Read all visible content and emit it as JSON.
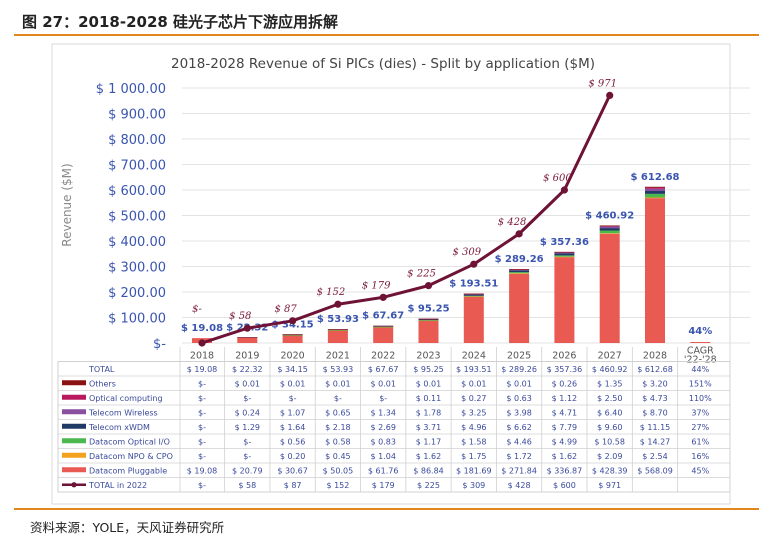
{
  "figure": {
    "caption": "图 27：2018-2028 硅光子芯片下游应用拆解",
    "source": "资料来源：YOLE，天风证券研究所"
  },
  "chart_data": {
    "type": "bar",
    "title": "2018-2028 Revenue of Si PICs (dies) - Split by application ($M)",
    "ylabel": "Revenue ($M)",
    "ylim": [
      0,
      1000
    ],
    "y_ticks": [
      "$-",
      "$ 100.00",
      "$ 200.00",
      "$ 300.00",
      "$ 400.00",
      "$ 500.00",
      "$ 600.00",
      "$ 700.00",
      "$ 800.00",
      "$ 900.00",
      "$ 1 000.00"
    ],
    "categories": [
      "2018",
      "2019",
      "2020",
      "2021",
      "2022",
      "2023",
      "2024",
      "2025",
      "2026",
      "2027",
      "2028"
    ],
    "cagr_header": "CAGR '22-'28",
    "cagr_column_label": "44%",
    "series": [
      {
        "name": "Datacom Pluggable",
        "color": "#e85a52",
        "values": [
          19.08,
          20.79,
          30.67,
          50.05,
          61.76,
          86.84,
          181.69,
          271.84,
          336.87,
          428.39,
          568.09
        ],
        "display": [
          "$ 19.08",
          "$ 20.79",
          "$ 30.67",
          "$ 50.05",
          "$ 61.76",
          "$ 86.84",
          "$ 181.69",
          "$ 271.84",
          "$ 336.87",
          "$ 428.39",
          "$ 568.09"
        ],
        "cagr": "45%"
      },
      {
        "name": "Datacom NPO & CPO",
        "color": "#f3a21f",
        "values": [
          0,
          0,
          0.2,
          0.45,
          1.04,
          1.62,
          1.75,
          1.72,
          1.62,
          2.09,
          2.54
        ],
        "display": [
          "$-",
          "$-",
          "$ 0.20",
          "$ 0.45",
          "$ 1.04",
          "$ 1.62",
          "$ 1.75",
          "$ 1.72",
          "$ 1.62",
          "$ 2.09",
          "$ 2.54"
        ],
        "cagr": "16%"
      },
      {
        "name": "Datacom Optical I/O",
        "color": "#4bb84e",
        "values": [
          0,
          0,
          0.56,
          0.58,
          0.83,
          1.17,
          1.58,
          4.46,
          4.99,
          10.58,
          14.27
        ],
        "display": [
          "$-",
          "$-",
          "$ 0.56",
          "$ 0.58",
          "$ 0.83",
          "$ 1.17",
          "$ 1.58",
          "$ 4.46",
          "$ 4.99",
          "$ 10.58",
          "$ 14.27"
        ],
        "cagr": "61%"
      },
      {
        "name": "Telecom xWDM",
        "color": "#1f3a66",
        "values": [
          0,
          1.29,
          1.64,
          2.18,
          2.69,
          3.71,
          4.96,
          6.62,
          7.79,
          9.6,
          11.15
        ],
        "display": [
          "$-",
          "$ 1.29",
          "$ 1.64",
          "$ 2.18",
          "$ 2.69",
          "$ 3.71",
          "$ 4.96",
          "$ 6.62",
          "$ 7.79",
          "$ 9.60",
          "$ 11.15"
        ],
        "cagr": "27%"
      },
      {
        "name": "Telecom Wireless",
        "color": "#8a4f9e",
        "values": [
          0,
          0.24,
          1.07,
          0.65,
          1.34,
          1.78,
          3.25,
          3.98,
          4.71,
          6.4,
          8.7
        ],
        "display": [
          "$-",
          "$ 0.24",
          "$ 1.07",
          "$ 0.65",
          "$ 1.34",
          "$ 1.78",
          "$ 3.25",
          "$ 3.98",
          "$ 4.71",
          "$ 6.40",
          "$ 8.70"
        ],
        "cagr": "37%"
      },
      {
        "name": "Optical computing",
        "color": "#b8185e",
        "values": [
          0,
          0,
          0,
          0,
          0,
          0.11,
          0.27,
          0.63,
          1.12,
          2.5,
          4.73
        ],
        "display": [
          "$-",
          "$-",
          "$-",
          "$-",
          "$-",
          "$ 0.11",
          "$ 0.27",
          "$ 0.63",
          "$ 1.12",
          "$ 2.50",
          "$ 4.73"
        ],
        "cagr": "110%"
      },
      {
        "name": "Others",
        "color": "#8b1212",
        "values": [
          0,
          0.01,
          0.01,
          0.01,
          0.01,
          0.01,
          0.01,
          0.01,
          0.26,
          1.35,
          3.2
        ],
        "display": [
          "$-",
          "$ 0.01",
          "$ 0.01",
          "$ 0.01",
          "$ 0.01",
          "$ 0.01",
          "$ 0.01",
          "$ 0.01",
          "$ 0.26",
          "$ 1.35",
          "$ 3.20"
        ],
        "cagr": "151%"
      }
    ],
    "total": {
      "name": "TOTAL",
      "values": [
        19.08,
        22.32,
        34.15,
        53.93,
        67.67,
        95.25,
        193.51,
        289.26,
        357.36,
        460.92,
        612.68
      ],
      "display": [
        "$ 19.08",
        "$ 22.32",
        "$ 34.15",
        "$ 53.93",
        "$ 67.67",
        "$ 95.25",
        "$ 193.51",
        "$ 289.26",
        "$ 357.36",
        "$ 460.92",
        "$ 612.68"
      ],
      "cagr": "44%"
    },
    "line_series": {
      "name": "TOTAL in 2022",
      "color": "#6e1236",
      "values": [
        0,
        58,
        87,
        152,
        179,
        225,
        309,
        428,
        600,
        971
      ],
      "labels": [
        "$-",
        "$ 58",
        "$ 87",
        "$ 152",
        "$ 179",
        "$ 225",
        "$ 309",
        "$ 428",
        "$ 600",
        "$ 971"
      ],
      "display": [
        "$-",
        "$ 58",
        "$ 87",
        "$ 152",
        "$ 179",
        "$ 225",
        "$ 309",
        "$ 428",
        "$ 600",
        "$ 971",
        ""
      ]
    },
    "grid": true,
    "legend": "table-bottom"
  }
}
